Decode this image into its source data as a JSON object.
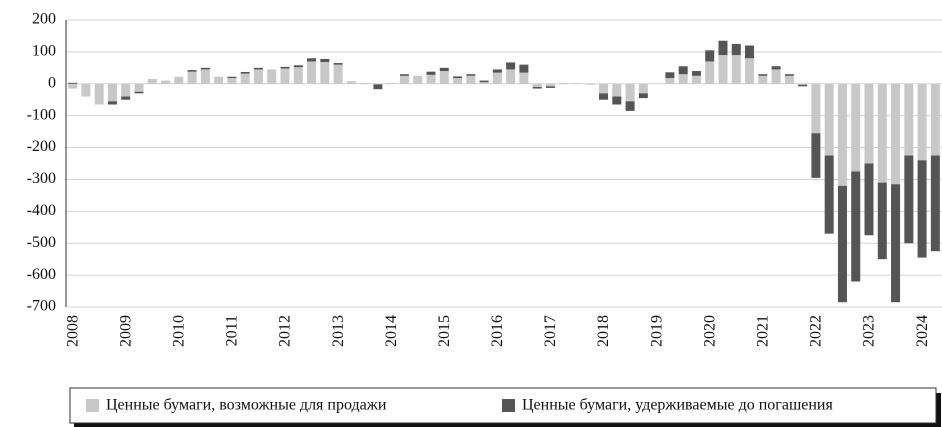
{
  "chart_data": {
    "type": "bar",
    "stacked": true,
    "categories": [
      "2008",
      null,
      null,
      null,
      "2009",
      null,
      null,
      null,
      "2010",
      null,
      null,
      null,
      "2011",
      null,
      null,
      null,
      "2012",
      null,
      null,
      null,
      "2013",
      null,
      null,
      null,
      "2014",
      null,
      null,
      null,
      "2015",
      null,
      null,
      null,
      "2016",
      null,
      null,
      null,
      "2017",
      null,
      null,
      null,
      "2018",
      null,
      null,
      null,
      "2019",
      null,
      null,
      null,
      "2020",
      null,
      null,
      null,
      "2021",
      null,
      null,
      null,
      "2022",
      null,
      null,
      null,
      "2023",
      null,
      null,
      null,
      "2024",
      null
    ],
    "series": [
      {
        "name": "Ценные бумаги, возможные для продажи",
        "color": "#c8c8c8",
        "values": [
          -15,
          -40,
          -65,
          -55,
          -40,
          -25,
          15,
          10,
          22,
          38,
          45,
          22,
          18,
          32,
          45,
          45,
          48,
          52,
          70,
          68,
          60,
          8,
          3,
          -2,
          3,
          25,
          25,
          28,
          40,
          18,
          25,
          5,
          35,
          45,
          35,
          -10,
          -8,
          3,
          2,
          -3,
          -30,
          -40,
          -55,
          -30,
          0,
          18,
          30,
          25,
          70,
          90,
          90,
          80,
          25,
          45,
          25,
          -3,
          -155,
          -225,
          -320,
          -275,
          -250,
          -310,
          -315,
          -225,
          -240,
          -225
        ]
      },
      {
        "name": "Ценные бумаги, удерживаемые до погашения",
        "color": "#555555",
        "values": [
          3,
          0,
          0,
          -10,
          -10,
          -5,
          0,
          0,
          0,
          5,
          5,
          0,
          4,
          5,
          5,
          0,
          5,
          6,
          10,
          10,
          5,
          0,
          0,
          -15,
          0,
          5,
          0,
          10,
          10,
          5,
          5,
          5,
          10,
          22,
          25,
          -5,
          -5,
          0,
          0,
          0,
          -20,
          -25,
          -30,
          -15,
          0,
          18,
          25,
          15,
          35,
          45,
          35,
          40,
          5,
          10,
          5,
          -5,
          -140,
          -245,
          -365,
          -345,
          -225,
          -240,
          -370,
          -275,
          -305,
          -300
        ]
      }
    ],
    "ylim": [
      -700,
      200
    ],
    "yticks": [
      200,
      100,
      0,
      -100,
      -200,
      -300,
      -400,
      -500,
      -600,
      -700
    ],
    "grid": true,
    "legend": "bottom"
  }
}
